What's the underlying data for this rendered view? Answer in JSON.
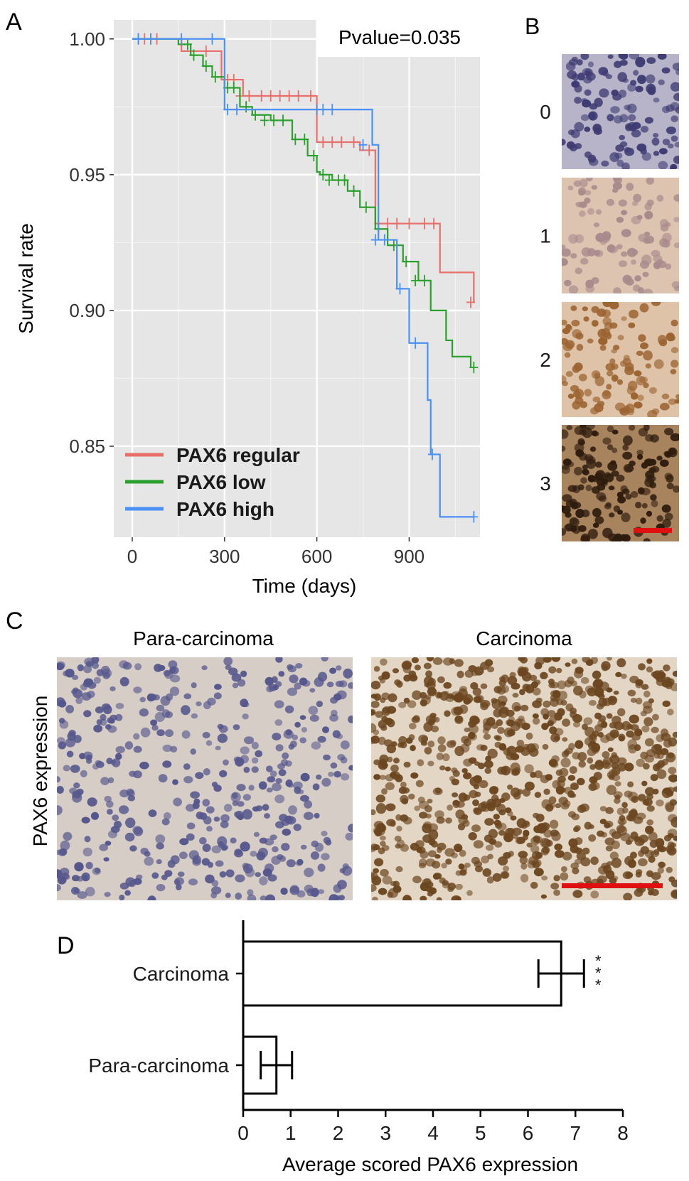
{
  "panels": {
    "a": {
      "letter": "A"
    },
    "b": {
      "letter": "B"
    },
    "c": {
      "letter": "C",
      "left_label": "Para-carcinoma",
      "right_label": "Carcinoma",
      "ylabel": "PAX6 expression"
    },
    "d": {
      "letter": "D"
    }
  },
  "chart_data": [
    {
      "type": "line",
      "panel": "A",
      "title": "",
      "xlabel": "Time (days)",
      "ylabel": "Survival rate",
      "xlim": [
        -60,
        1130
      ],
      "ylim": [
        0.8165,
        1.007
      ],
      "x_ticks": [
        0,
        300,
        600,
        900
      ],
      "y_ticks": [
        0.85,
        0.9,
        0.95,
        1.0
      ],
      "x_tick_labels": [
        "0",
        "300",
        "600",
        "900"
      ],
      "y_tick_labels": [
        "0.85",
        "0.90",
        "0.95",
        "1.00"
      ],
      "grid": true,
      "legend_position": "bottom-left",
      "annotation": "Pvalue=0.035",
      "series": [
        {
          "name": "PAX6 regular",
          "color": "#e8706b",
          "x": [
            0,
            160,
            220,
            290,
            360,
            400,
            560,
            600,
            700,
            740,
            790,
            985,
            1000,
            1110
          ],
          "y": [
            1.0,
            0.9955,
            0.9955,
            0.985,
            0.979,
            0.979,
            0.979,
            0.962,
            0.962,
            0.959,
            0.932,
            0.932,
            0.914,
            0.903
          ],
          "censor_x": [
            20,
            40,
            60,
            80,
            240,
            310,
            330,
            350,
            380,
            420,
            450,
            480,
            510,
            540,
            580,
            620,
            650,
            680,
            720,
            770,
            800,
            830,
            860,
            900,
            950,
            980,
            1100
          ],
          "censor_y": [
            1.0,
            1.0,
            1.0,
            1.0,
            0.9955,
            0.985,
            0.985,
            0.979,
            0.979,
            0.979,
            0.979,
            0.979,
            0.979,
            0.979,
            0.979,
            0.962,
            0.962,
            0.962,
            0.962,
            0.959,
            0.932,
            0.932,
            0.932,
            0.932,
            0.932,
            0.932,
            0.903
          ]
        },
        {
          "name": "PAX6 low",
          "color": "#2ca02c",
          "x": [
            0,
            150,
            190,
            230,
            260,
            300,
            350,
            390,
            450,
            520,
            570,
            600,
            610,
            650,
            700,
            740,
            790,
            830,
            880,
            930,
            970,
            1020,
            1040,
            1100
          ],
          "y": [
            1.0,
            0.998,
            0.994,
            0.99,
            0.986,
            0.982,
            0.975,
            0.972,
            0.97,
            0.963,
            0.957,
            0.951,
            0.95,
            0.948,
            0.944,
            0.938,
            0.93,
            0.924,
            0.918,
            0.911,
            0.9,
            0.889,
            0.883,
            0.879
          ],
          "censor_x": [
            180,
            200,
            240,
            270,
            310,
            330,
            370,
            400,
            430,
            460,
            490,
            530,
            560,
            590,
            620,
            640,
            670,
            690,
            720,
            760,
            800,
            850,
            890,
            920,
            950,
            1110
          ],
          "censor_y": [
            0.998,
            0.994,
            0.99,
            0.986,
            0.982,
            0.982,
            0.975,
            0.972,
            0.97,
            0.97,
            0.97,
            0.963,
            0.963,
            0.957,
            0.95,
            0.948,
            0.948,
            0.948,
            0.944,
            0.938,
            0.93,
            0.924,
            0.918,
            0.911,
            0.911,
            0.879
          ]
        },
        {
          "name": "PAX6 high",
          "color": "#4a90f5",
          "x": [
            0,
            285,
            300,
            680,
            780,
            800,
            860,
            900,
            940,
            960,
            970,
            1000,
            1110
          ],
          "y": [
            1.0,
            1.0,
            0.974,
            0.974,
            0.961,
            0.926,
            0.908,
            0.888,
            0.888,
            0.867,
            0.847,
            0.824,
            0.824
          ],
          "censor_x": [
            20,
            60,
            160,
            260,
            310,
            340,
            600,
            620,
            650,
            750,
            790,
            820,
            870,
            920,
            975,
            1110
          ],
          "censor_y": [
            1.0,
            1.0,
            1.0,
            1.0,
            0.974,
            0.974,
            0.974,
            0.974,
            0.974,
            0.961,
            0.926,
            0.926,
            0.908,
            0.888,
            0.847,
            0.824
          ]
        }
      ]
    },
    {
      "type": "bar",
      "panel": "D",
      "orientation": "horizontal",
      "categories": [
        "Carcinoma",
        "Para-carcinoma"
      ],
      "values": [
        6.7,
        0.7
      ],
      "errors": [
        0.48,
        0.33
      ],
      "significance": [
        "***",
        ""
      ],
      "xlabel": "Average scored PAX6 expression",
      "ylabel": "",
      "title": "",
      "xlim": [
        0,
        8
      ],
      "x_ticks": [
        0,
        1,
        2,
        3,
        4,
        5,
        6,
        7,
        8
      ],
      "bar_fill": "#ffffff",
      "bar_stroke": "#000000"
    }
  ],
  "ihc_panel_b": {
    "scale_bar_color": "#e01010",
    "tiles": [
      {
        "label": "0",
        "bg": "#b7b4c9",
        "nucleus": "#3e3b73",
        "density": 0.75
      },
      {
        "label": "1",
        "bg": "#dcc4b0",
        "nucleus": "#a98a8c",
        "density": 0.6
      },
      {
        "label": "2",
        "bg": "#dec3a8",
        "nucleus": "#9b6330",
        "density": 0.7
      },
      {
        "label": "3",
        "bg": "#a8845e",
        "nucleus": "#2f1c0e",
        "density": 0.95
      }
    ]
  },
  "ihc_panel_c": {
    "scale_bar_color": "#e01010",
    "left": {
      "bg": "#d6cdc7",
      "nucleus": "#55568c"
    },
    "right": {
      "bg": "#e4d6c4",
      "nucleus": "#6b4620"
    }
  }
}
